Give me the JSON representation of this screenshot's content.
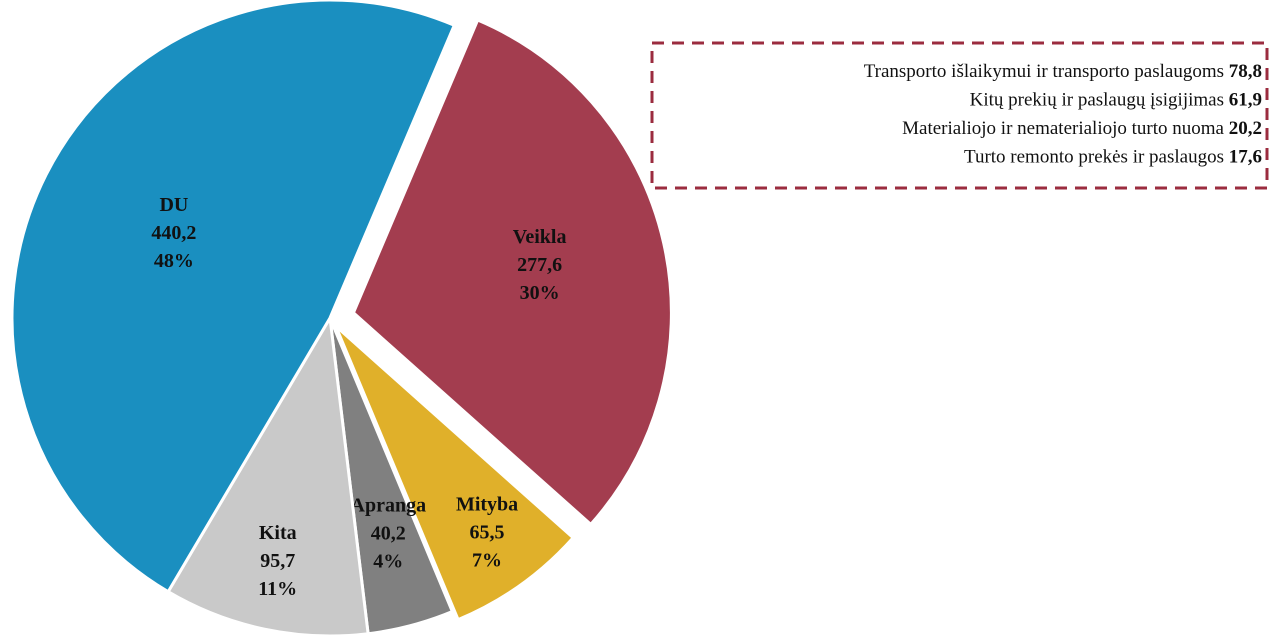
{
  "chart_data": {
    "type": "pie",
    "categories": [
      "Veikla",
      "Mityba",
      "Apranga",
      "Kita",
      "DU"
    ],
    "values": [
      277.6,
      65.5,
      40.2,
      95.7,
      440.2
    ],
    "value_labels": [
      "277,6",
      "65,5",
      "40,2",
      "95,7",
      "440,2"
    ],
    "percents": [
      30,
      7,
      4,
      11,
      48
    ],
    "percent_labels": [
      "30%",
      "7%",
      "4%",
      "11%",
      "48%"
    ],
    "colors": [
      "#a33d4f",
      "#e0b02a",
      "#808080",
      "#c9c9c9",
      "#1a8fc0"
    ],
    "annotations": [
      {
        "text": "Transporto išlaikymui ir transporto paslaugoms",
        "value": 78.8,
        "value_label": "78,8"
      },
      {
        "text": "Kitų prekių ir paslaugų įsigijimas",
        "value": 61.9,
        "value_label": "61,9"
      },
      {
        "text": "Materialiojo ir nematerialiojo turto nuoma",
        "value": 20.2,
        "value_label": "20,2"
      },
      {
        "text": "Turto remonto prekės ir paslaugos",
        "value": 17.6,
        "value_label": "17,6"
      }
    ]
  }
}
